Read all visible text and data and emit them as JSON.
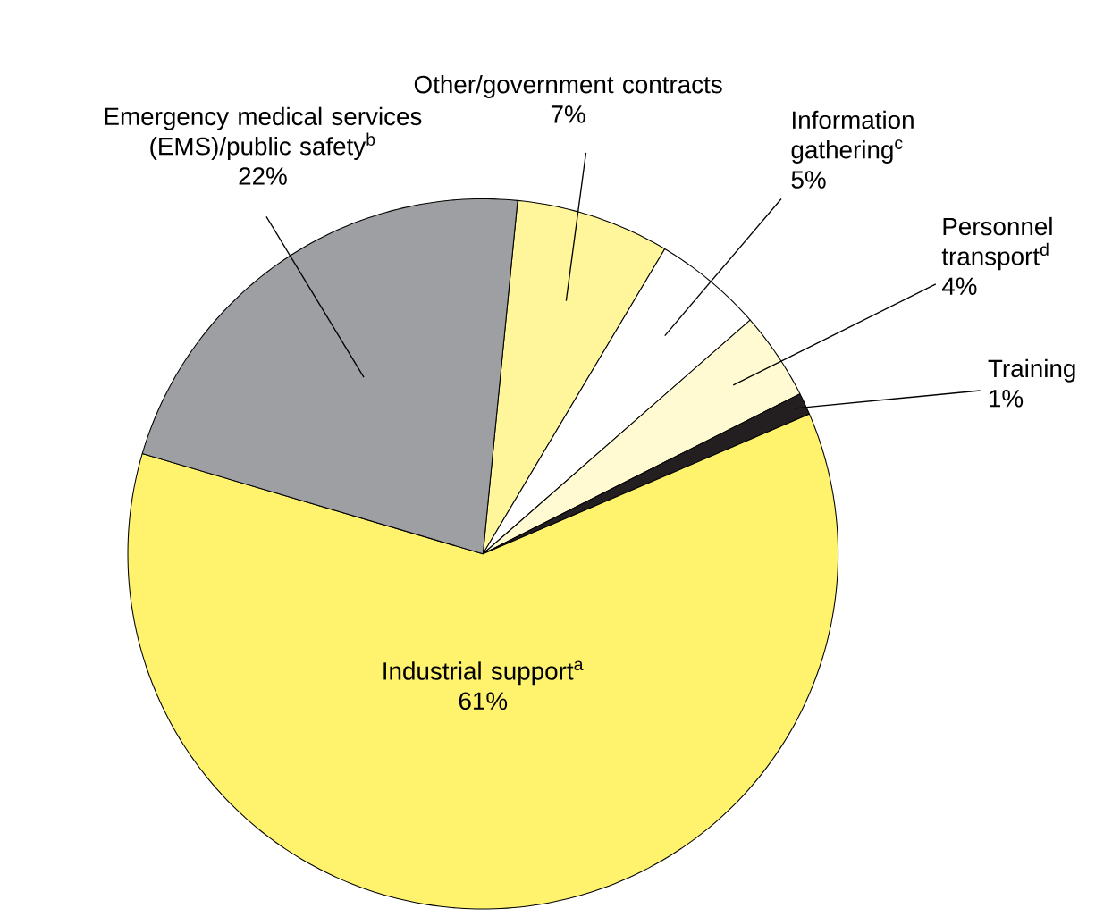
{
  "chart_data": {
    "type": "pie",
    "categories": [
      "Other/government contracts",
      "Information gathering$^{c}$",
      "Personnel transport$^{d}$",
      "Training",
      "Industrial support$^{a}$",
      "Emergency medical services (EMS)/public safety$^{b}$"
    ],
    "values": [
      7,
      5,
      4,
      1,
      61,
      22
    ],
    "value_labels": [
      "7%",
      "5%",
      "4%",
      "1%",
      "61%",
      "22%"
    ],
    "colors": [
      "#fff59a",
      "#ffffff",
      "#fffad2",
      "#231f20",
      "#fff36e",
      "#9d9fa2"
    ]
  }
}
